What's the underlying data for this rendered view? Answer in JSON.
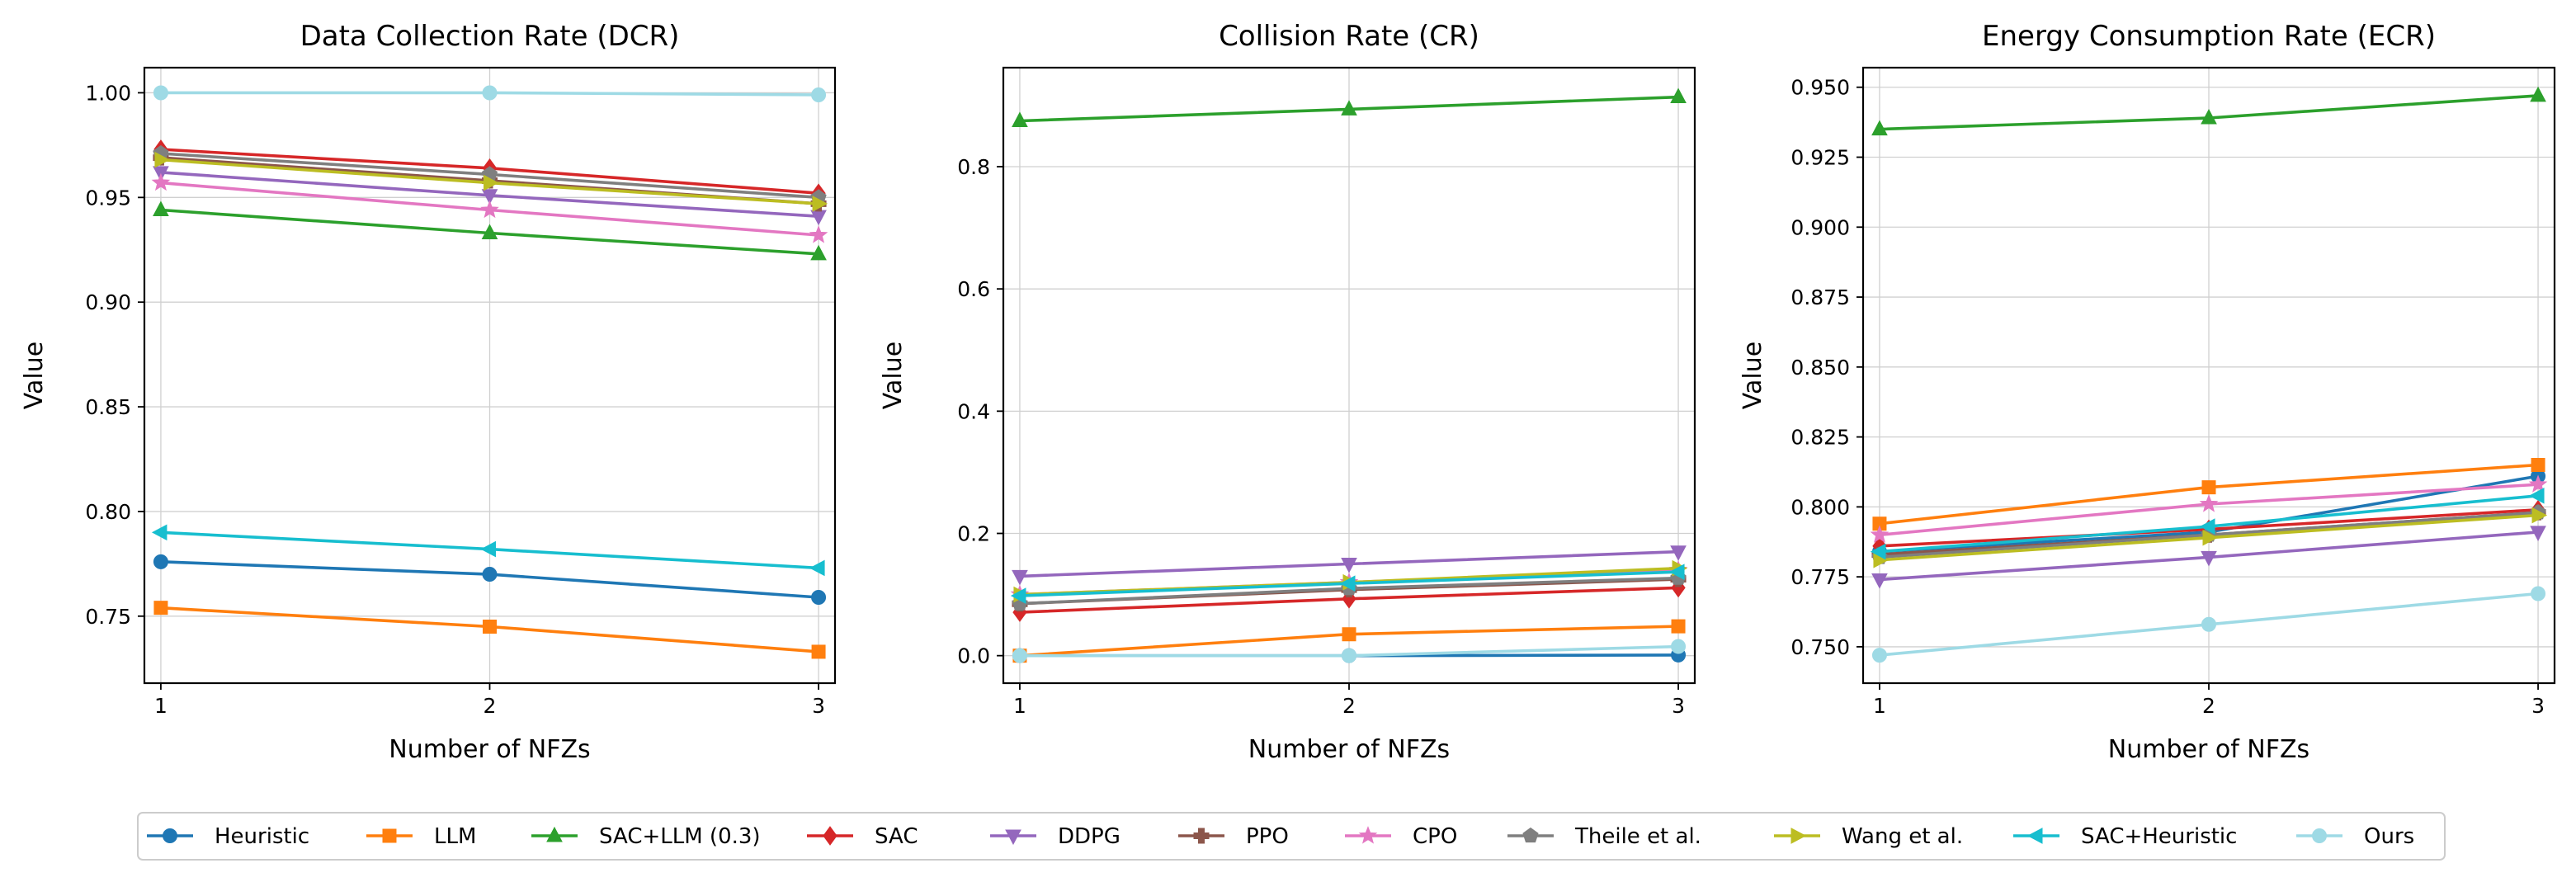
{
  "chart_data": [
    {
      "type": "line",
      "title": "Data Collection Rate (DCR)",
      "xlabel": "Number of NFZs",
      "ylabel": "Value",
      "x": [
        1,
        2,
        3
      ],
      "xticks": [
        "1",
        "2",
        "3"
      ],
      "xlim": [
        0.95,
        3.05
      ],
      "ylim": [
        0.718,
        1.012
      ],
      "yticks": [
        0.75,
        0.8,
        0.85,
        0.9,
        0.95,
        1.0
      ],
      "ytick_labels": [
        "0.75",
        "0.80",
        "0.85",
        "0.90",
        "0.95",
        "1.00"
      ],
      "grid": true,
      "series": [
        {
          "name": "Heuristic",
          "values": [
            0.776,
            0.77,
            0.759
          ]
        },
        {
          "name": "LLM",
          "values": [
            0.754,
            0.745,
            0.733
          ]
        },
        {
          "name": "SAC+LLM (0.3)",
          "values": [
            0.944,
            0.933,
            0.923
          ]
        },
        {
          "name": "SAC",
          "values": [
            0.973,
            0.964,
            0.952
          ]
        },
        {
          "name": "DDPG",
          "values": [
            0.962,
            0.951,
            0.941
          ]
        },
        {
          "name": "PPO",
          "values": [
            0.969,
            0.958,
            0.947
          ]
        },
        {
          "name": "CPO",
          "values": [
            0.957,
            0.944,
            0.932
          ]
        },
        {
          "name": "Theile et al.",
          "values": [
            0.971,
            0.961,
            0.95
          ]
        },
        {
          "name": "Wang et al.",
          "values": [
            0.968,
            0.957,
            0.947
          ]
        },
        {
          "name": "SAC+Heuristic",
          "values": [
            0.79,
            0.782,
            0.773
          ]
        },
        {
          "name": "Ours",
          "values": [
            1.0,
            1.0,
            0.999
          ]
        }
      ]
    },
    {
      "type": "line",
      "title": "Collision Rate (CR)",
      "xlabel": "Number of NFZs",
      "ylabel": "Value",
      "x": [
        1,
        2,
        3
      ],
      "xticks": [
        "1",
        "2",
        "3"
      ],
      "xlim": [
        0.95,
        3.05
      ],
      "ylim": [
        -0.045,
        0.962
      ],
      "yticks": [
        0.0,
        0.2,
        0.4,
        0.6,
        0.8
      ],
      "ytick_labels": [
        "0.0",
        "0.2",
        "0.4",
        "0.6",
        "0.8"
      ],
      "grid": true,
      "series": [
        {
          "name": "Heuristic",
          "values": [
            0.0,
            0.0,
            0.001
          ]
        },
        {
          "name": "LLM",
          "values": [
            0.0,
            0.035,
            0.048
          ]
        },
        {
          "name": "SAC+LLM (0.3)",
          "values": [
            0.875,
            0.894,
            0.914
          ]
        },
        {
          "name": "SAC",
          "values": [
            0.071,
            0.093,
            0.111
          ]
        },
        {
          "name": "DDPG",
          "values": [
            0.13,
            0.15,
            0.17
          ]
        },
        {
          "name": "PPO",
          "values": [
            0.085,
            0.108,
            0.125
          ]
        },
        {
          "name": "CPO",
          "values": [
            0.1,
            0.12,
            0.14
          ]
        },
        {
          "name": "Theile et al.",
          "values": [
            0.085,
            0.11,
            0.127
          ]
        },
        {
          "name": "Wang et al.",
          "values": [
            0.1,
            0.12,
            0.143
          ]
        },
        {
          "name": "SAC+Heuristic",
          "values": [
            0.098,
            0.118,
            0.137
          ]
        },
        {
          "name": "Ours",
          "values": [
            0.0,
            0.0,
            0.015
          ]
        }
      ]
    },
    {
      "type": "line",
      "title": "Energy Consumption Rate (ECR)",
      "xlabel": "Number of NFZs",
      "ylabel": "Value",
      "x": [
        1,
        2,
        3
      ],
      "xticks": [
        "1",
        "2",
        "3"
      ],
      "xlim": [
        0.95,
        3.05
      ],
      "ylim": [
        0.737,
        0.957
      ],
      "yticks": [
        0.75,
        0.775,
        0.8,
        0.825,
        0.85,
        0.875,
        0.9,
        0.925,
        0.95
      ],
      "ytick_labels": [
        "0.750",
        "0.775",
        "0.800",
        "0.825",
        "0.850",
        "0.875",
        "0.900",
        "0.925",
        "0.950"
      ],
      "grid": true,
      "series": [
        {
          "name": "Heuristic",
          "values": [
            0.784,
            0.791,
            0.811
          ]
        },
        {
          "name": "LLM",
          "values": [
            0.794,
            0.807,
            0.815
          ]
        },
        {
          "name": "SAC+LLM (0.3)",
          "values": [
            0.935,
            0.939,
            0.947
          ]
        },
        {
          "name": "SAC",
          "values": [
            0.786,
            0.792,
            0.799
          ]
        },
        {
          "name": "DDPG",
          "values": [
            0.774,
            0.782,
            0.791
          ]
        },
        {
          "name": "PPO",
          "values": [
            0.783,
            0.79,
            0.798
          ]
        },
        {
          "name": "CPO",
          "values": [
            0.79,
            0.801,
            0.808
          ]
        },
        {
          "name": "Theile et al.",
          "values": [
            0.782,
            0.79,
            0.798
          ]
        },
        {
          "name": "Wang et al.",
          "values": [
            0.781,
            0.789,
            0.797
          ]
        },
        {
          "name": "SAC+Heuristic",
          "values": [
            0.784,
            0.793,
            0.804
          ]
        },
        {
          "name": "Ours",
          "values": [
            0.747,
            0.758,
            0.769
          ]
        }
      ]
    }
  ],
  "legend": {
    "placement": "bottom",
    "entries": [
      {
        "name": "Heuristic",
        "color": "#1f77b4",
        "marker": "circle"
      },
      {
        "name": "LLM",
        "color": "#ff7f0e",
        "marker": "square"
      },
      {
        "name": "SAC+LLM (0.3)",
        "color": "#2ca02c",
        "marker": "triangle-up"
      },
      {
        "name": "SAC",
        "color": "#d62728",
        "marker": "diamond"
      },
      {
        "name": "DDPG",
        "color": "#9467bd",
        "marker": "triangle-down"
      },
      {
        "name": "PPO",
        "color": "#8c564b",
        "marker": "plus"
      },
      {
        "name": "CPO",
        "color": "#e377c2",
        "marker": "star"
      },
      {
        "name": "Theile et al.",
        "color": "#7f7f7f",
        "marker": "pentagon"
      },
      {
        "name": "Wang et al.",
        "color": "#bcbd22",
        "marker": "triangle-right"
      },
      {
        "name": "SAC+Heuristic",
        "color": "#17becf",
        "marker": "triangle-left"
      },
      {
        "name": "Ours",
        "color": "#9edae5",
        "marker": "circle"
      }
    ]
  }
}
